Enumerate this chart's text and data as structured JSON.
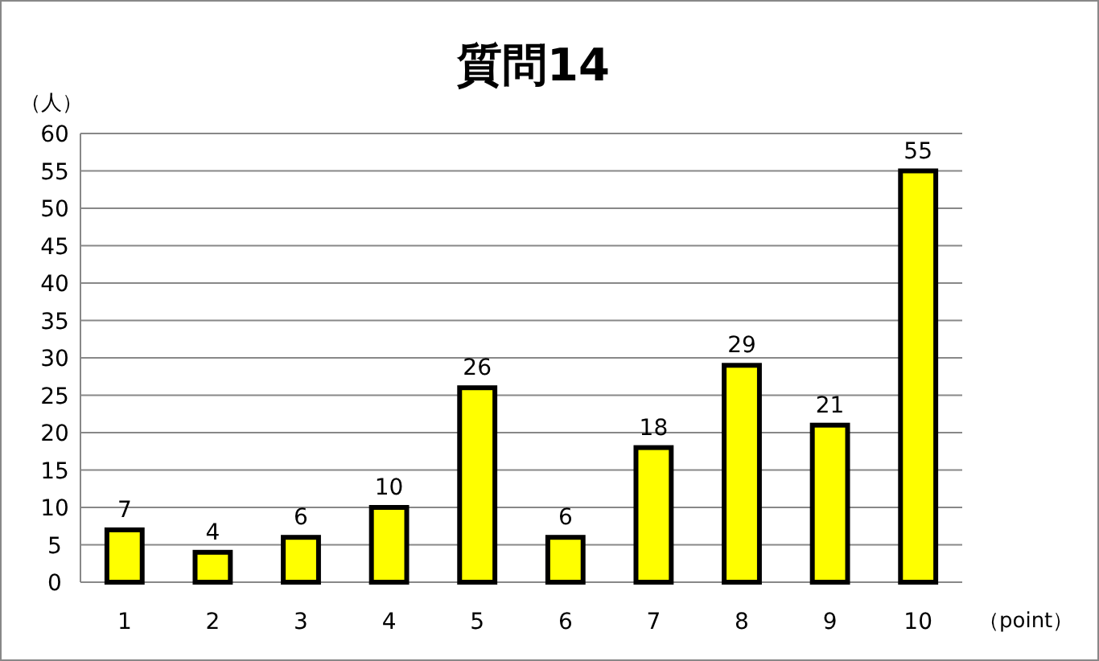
{
  "chart_data": {
    "type": "bar",
    "title": "質問14",
    "ylabel": "（人）",
    "xlabel": "（point）",
    "categories": [
      "1",
      "2",
      "3",
      "4",
      "5",
      "6",
      "7",
      "8",
      "9",
      "10"
    ],
    "values": [
      7,
      4,
      6,
      10,
      26,
      6,
      18,
      29,
      21,
      55
    ],
    "color": "#ffff00",
    "ylim": [
      0,
      60
    ],
    "yticks": [
      0,
      5,
      10,
      15,
      20,
      25,
      30,
      35,
      40,
      45,
      50,
      55,
      60
    ],
    "grid": "y",
    "data_labels": true
  }
}
